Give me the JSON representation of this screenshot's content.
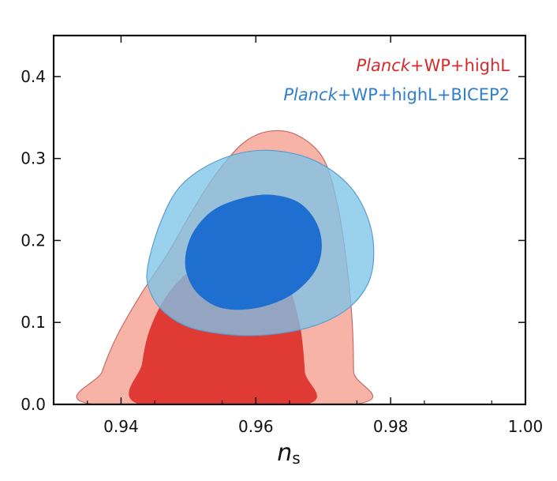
{
  "chart_data": {
    "type": "contour",
    "xlabel": "n",
    "xlabel_subscript": "s",
    "ylabel": "",
    "xlim": [
      0.93,
      1.0
    ],
    "ylim": [
      0.0,
      0.45
    ],
    "x_ticks": [
      "0.94",
      "0.96",
      "0.98",
      "1.00"
    ],
    "x_tick_values": [
      0.94,
      0.96,
      0.98,
      1.0
    ],
    "y_ticks": [
      "0.0",
      "0.1",
      "0.2",
      "0.3",
      "0.4"
    ],
    "y_tick_values": [
      0.0,
      0.1,
      0.2,
      0.3,
      0.4
    ],
    "legend_position": "top-right",
    "series": [
      {
        "name": "Planck+WP+highL",
        "name_italic_part": "Planck",
        "name_rest": "+WP+highL",
        "text_color": "#d62b2b",
        "contours": [
          {
            "level": "95%",
            "fill": "#f7b3a6",
            "stroke": "#c46b6b",
            "points": [
              [
                0.936,
                0.0
              ],
              [
                0.9372,
                0.04
              ],
              [
                0.9395,
                0.085
              ],
              [
                0.943,
                0.135
              ],
              [
                0.947,
                0.185
              ],
              [
                0.9505,
                0.235
              ],
              [
                0.954,
                0.28
              ],
              [
                0.958,
                0.318
              ],
              [
                0.9618,
                0.333
              ],
              [
                0.966,
                0.329
              ],
              [
                0.97,
                0.3
              ],
              [
                0.9722,
                0.24
              ],
              [
                0.9735,
                0.17
              ],
              [
                0.9743,
                0.1
              ],
              [
                0.9745,
                0.04
              ],
              [
                0.9745,
                0.0
              ]
            ]
          },
          {
            "level": "68%",
            "fill": "#e03a35",
            "stroke": "#e03a35",
            "points": [
              [
                0.943,
                0.0
              ],
              [
                0.9432,
                0.05
              ],
              [
                0.9445,
                0.095
              ],
              [
                0.9475,
                0.14
              ],
              [
                0.952,
                0.172
              ],
              [
                0.9575,
                0.186
              ],
              [
                0.961,
                0.18
              ],
              [
                0.9645,
                0.15
              ],
              [
                0.9665,
                0.095
              ],
              [
                0.9672,
                0.04
              ],
              [
                0.9672,
                0.0
              ]
            ]
          }
        ]
      },
      {
        "name": "Planck+WP+highL+BICEP2",
        "name_italic_part": "Planck",
        "name_rest": "+WP+highL+BICEP2",
        "text_color": "#2f7fce",
        "contours": [
          {
            "level": "95%",
            "fill": "#7ec4e8",
            "fill_opacity": 0.78,
            "stroke": "#5a9dcf",
            "points": [
              [
                0.944,
                0.17
              ],
              [
                0.946,
                0.225
              ],
              [
                0.949,
                0.268
              ],
              [
                0.9545,
                0.298
              ],
              [
                0.961,
                0.31
              ],
              [
                0.968,
                0.3
              ],
              [
                0.9735,
                0.27
              ],
              [
                0.9765,
                0.23
              ],
              [
                0.9775,
                0.185
              ],
              [
                0.9765,
                0.145
              ],
              [
                0.973,
                0.113
              ],
              [
                0.967,
                0.092
              ],
              [
                0.959,
                0.084
              ],
              [
                0.951,
                0.092
              ],
              [
                0.9465,
                0.112
              ],
              [
                0.9442,
                0.14
              ]
            ]
          },
          {
            "level": "68%",
            "fill": "#1f6fd1",
            "stroke": "#1f6fd1",
            "points": [
              [
                0.9497,
                0.185
              ],
              [
                0.951,
                0.213
              ],
              [
                0.954,
                0.238
              ],
              [
                0.9585,
                0.252
              ],
              [
                0.9625,
                0.255
              ],
              [
                0.9665,
                0.245
              ],
              [
                0.969,
                0.22
              ],
              [
                0.9697,
                0.19
              ],
              [
                0.9685,
                0.16
              ],
              [
                0.965,
                0.133
              ],
              [
                0.96,
                0.118
              ],
              [
                0.955,
                0.118
              ],
              [
                0.9515,
                0.135
              ],
              [
                0.9498,
                0.16
              ]
            ]
          }
        ]
      }
    ]
  }
}
